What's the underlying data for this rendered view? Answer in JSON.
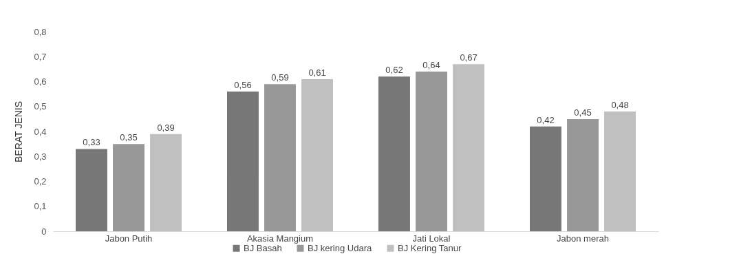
{
  "chart_data": {
    "type": "bar",
    "ylabel": "BERAT JENIS",
    "categories": [
      "Jabon Putih",
      "Akasia Mangium",
      "Jati Lokal",
      "Jabon merah"
    ],
    "series": [
      {
        "name": "BJ Basah",
        "color": "#777777",
        "values": [
          0.33,
          0.56,
          0.62,
          0.42
        ],
        "value_labels": [
          "0,33",
          "0,56",
          "0,62",
          "0,42"
        ]
      },
      {
        "name": "BJ kering Udara",
        "color": "#989898",
        "values": [
          0.35,
          0.59,
          0.64,
          0.45
        ],
        "value_labels": [
          "0,35",
          "0,59",
          "0,64",
          "0,45"
        ]
      },
      {
        "name": "BJ Kering Tanur",
        "color": "#c0c0c0",
        "values": [
          0.39,
          0.61,
          0.67,
          0.48
        ],
        "value_labels": [
          "0,39",
          "0,61",
          "0,67",
          "0,48"
        ]
      }
    ],
    "ylim": [
      0,
      0.8
    ],
    "yticks": [
      {
        "value": 0,
        "label": "0"
      },
      {
        "value": 0.1,
        "label": "0,1"
      },
      {
        "value": 0.2,
        "label": "0,2"
      },
      {
        "value": 0.3,
        "label": "0,3"
      },
      {
        "value": 0.4,
        "label": "0,4"
      },
      {
        "value": 0.5,
        "label": "0,5"
      },
      {
        "value": 0.6,
        "label": "0,6"
      },
      {
        "value": 0.7,
        "label": "0,7"
      },
      {
        "value": 0.8,
        "label": "0,8"
      }
    ],
    "grid": false,
    "legend": "bottom"
  }
}
